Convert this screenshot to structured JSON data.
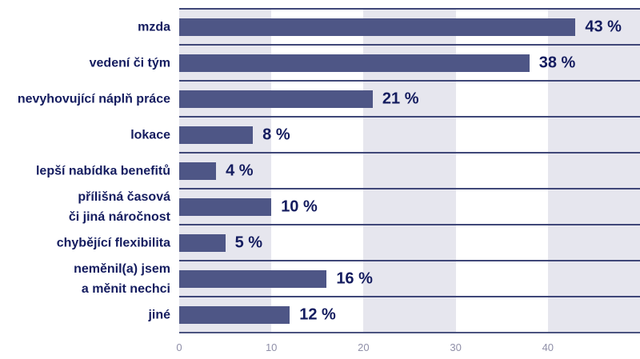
{
  "chart_data": {
    "type": "bar",
    "orientation": "horizontal",
    "title": "",
    "xlabel": "",
    "ylabel": "",
    "categories": [
      "mzda",
      "vedení či tým",
      "nevyhovující náplň práce",
      "lokace",
      "lepší nabídka benefitů",
      "přílišná časová\nči jiná náročnost",
      "chybějící flexibilita",
      "neměnil(a) jsem\na měnit nechci",
      "jiné"
    ],
    "values": [
      43,
      38,
      21,
      8,
      4,
      10,
      5,
      16,
      12
    ],
    "value_labels": [
      "43 %",
      "38 %",
      "21 %",
      "8 %",
      "4 %",
      "10 %",
      "5 %",
      "16 %",
      "12 %"
    ],
    "x_ticks": [
      0,
      10,
      20,
      30,
      40
    ],
    "x_tick_labels": [
      "0",
      "10",
      "20",
      "30",
      "40"
    ],
    "xlim": [
      0,
      50
    ],
    "legend": "none",
    "grid": "horizontal row-separator lines; alternating vertical background bands every 10 units starting shaded at 0-10",
    "colors": {
      "bar": "#4e5686",
      "category_text": "#141c5f",
      "value_text": "#141c5f",
      "tick_text": "#8f8fa8",
      "band": "#e6e6ee",
      "separator_line": "#3f4778",
      "axis_line": "#4b5380",
      "background": "#ffffff"
    }
  }
}
